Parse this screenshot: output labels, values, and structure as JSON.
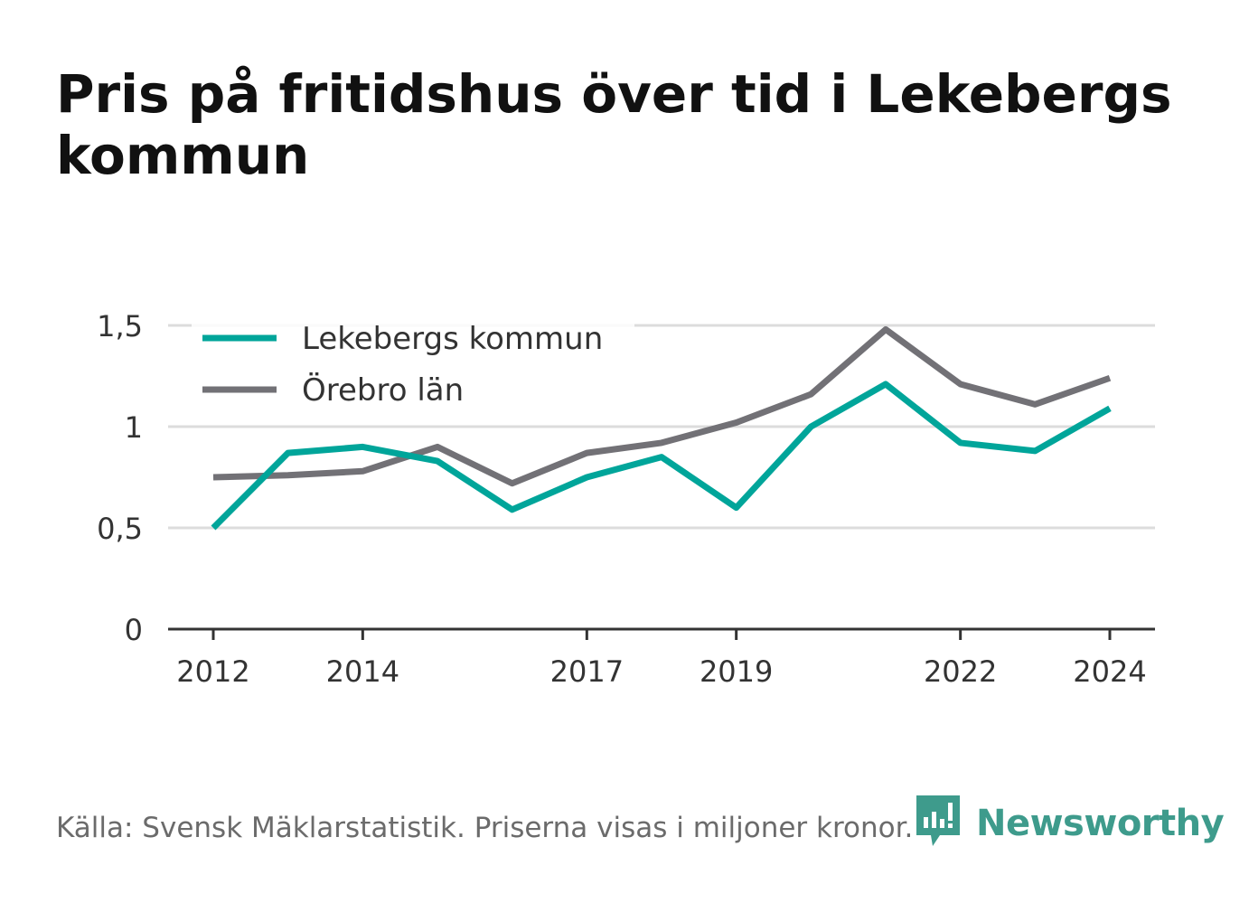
{
  "title": "Pris på fritidshus över tid i Lekebergs kommun",
  "source": "Källa: Svensk Mäklarstatistik. Priserna visas i miljoner kronor.",
  "brand": {
    "name": "Newsworthy",
    "icon": "newsworthy-logo-icon",
    "color": "#3e9b8c"
  },
  "chart_data": {
    "type": "line",
    "title": "Pris på fritidshus över tid i Lekebergs kommun",
    "xlabel": "",
    "ylabel": "",
    "x": [
      2012,
      2013,
      2014,
      2015,
      2016,
      2017,
      2018,
      2019,
      2020,
      2021,
      2022,
      2023,
      2024
    ],
    "x_tick_labels": [
      "2012",
      "2014",
      "2017",
      "2019",
      "2022",
      "2024"
    ],
    "x_tick_values": [
      2012,
      2014,
      2017,
      2019,
      2022,
      2024
    ],
    "y_ticks": [
      0,
      0.5,
      1,
      1.5
    ],
    "y_tick_labels": [
      "0",
      "0,5",
      "1",
      "1,5"
    ],
    "ylim": [
      0,
      1.5
    ],
    "xlim": [
      2012,
      2024
    ],
    "grid": true,
    "legend_position": "top-left",
    "series": [
      {
        "name": "Lekebergs kommun",
        "color": "#00a59a",
        "values": [
          0.5,
          0.87,
          0.9,
          0.83,
          0.59,
          0.75,
          0.85,
          0.6,
          1.0,
          1.21,
          0.92,
          0.88,
          1.09
        ]
      },
      {
        "name": "Örebro län",
        "color": "#727176",
        "values": [
          0.75,
          0.76,
          0.78,
          0.9,
          0.72,
          0.87,
          0.92,
          1.02,
          1.16,
          1.48,
          1.21,
          1.11,
          1.24
        ]
      }
    ]
  }
}
